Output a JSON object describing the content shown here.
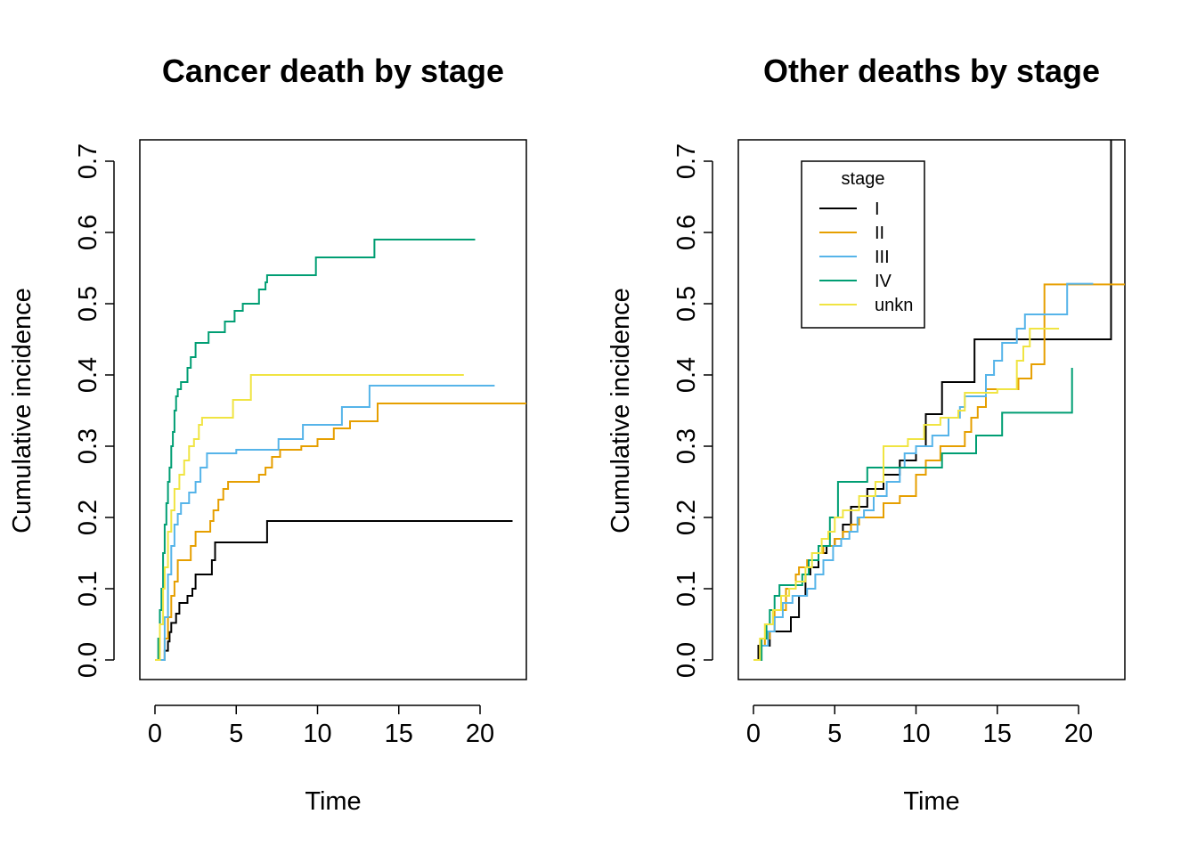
{
  "chart_data": [
    {
      "type": "line",
      "step": true,
      "title": "Cancer death by stage",
      "xlabel": "Time",
      "ylabel": "Cumulative incidence",
      "xlim": [
        0,
        23
      ],
      "ylim": [
        0,
        0.7
      ],
      "xticks": [
        "0",
        "5",
        "10",
        "15",
        "20"
      ],
      "yticks": [
        "0.0",
        "0.1",
        "0.2",
        "0.3",
        "0.4",
        "0.5",
        "0.6",
        "0.7"
      ],
      "legend": null,
      "series": [
        {
          "name": "I",
          "color": "#000000",
          "x": [
            0,
            0.5,
            0.6,
            0.8,
            0.9,
            1.0,
            1.3,
            1.5,
            2.0,
            2.3,
            2.5,
            3.5,
            3.7,
            5.0,
            6.9,
            22.0
          ],
          "y": [
            0,
            0,
            0.013,
            0.026,
            0.039,
            0.052,
            0.065,
            0.08,
            0.09,
            0.1,
            0.12,
            0.14,
            0.165,
            0.165,
            0.195,
            0.195
          ]
        },
        {
          "name": "II",
          "color": "#E69F00",
          "x": [
            0,
            0.4,
            0.6,
            0.8,
            1.0,
            1.2,
            1.4,
            2.2,
            2.5,
            3.4,
            3.6,
            3.9,
            4.2,
            4.5,
            4.9,
            6.4,
            6.8,
            7.2,
            7.7,
            9.0,
            10.0,
            11.0,
            12.0,
            13.7,
            15.0,
            23.0
          ],
          "y": [
            0,
            0,
            0.03,
            0.06,
            0.09,
            0.11,
            0.14,
            0.16,
            0.18,
            0.195,
            0.21,
            0.225,
            0.24,
            0.25,
            0.25,
            0.26,
            0.27,
            0.285,
            0.295,
            0.3,
            0.31,
            0.325,
            0.335,
            0.36,
            0.36,
            0.36
          ]
        },
        {
          "name": "III",
          "color": "#56B4E9",
          "x": [
            0,
            0.4,
            0.6,
            0.8,
            1.0,
            1.2,
            1.4,
            1.6,
            2.1,
            2.5,
            2.8,
            3.2,
            5.0,
            7.6,
            9.1,
            11.5,
            13.2,
            15.0,
            20.9
          ],
          "y": [
            0,
            0,
            0.06,
            0.12,
            0.16,
            0.19,
            0.205,
            0.22,
            0.235,
            0.25,
            0.27,
            0.29,
            0.295,
            0.31,
            0.33,
            0.355,
            0.385,
            0.385,
            0.385
          ]
        },
        {
          "name": "IV",
          "color": "#009E73",
          "x": [
            0,
            0.2,
            0.3,
            0.4,
            0.5,
            0.6,
            0.7,
            0.8,
            0.9,
            1.0,
            1.1,
            1.2,
            1.3,
            1.4,
            1.5,
            1.6,
            2.0,
            2.2,
            2.5,
            2.8,
            3.3,
            4.3,
            4.9,
            5.4,
            6.4,
            6.8,
            6.9,
            9.9,
            13.5,
            19.7
          ],
          "y": [
            0,
            0.03,
            0.07,
            0.1,
            0.15,
            0.19,
            0.22,
            0.25,
            0.27,
            0.3,
            0.32,
            0.35,
            0.37,
            0.38,
            0.38,
            0.39,
            0.41,
            0.425,
            0.445,
            0.445,
            0.46,
            0.475,
            0.49,
            0.5,
            0.52,
            0.53,
            0.54,
            0.565,
            0.59,
            0.59
          ]
        },
        {
          "name": "unkn",
          "color": "#F0E442",
          "x": [
            0,
            0.3,
            0.5,
            0.6,
            0.8,
            1.0,
            1.2,
            1.5,
            1.8,
            2.1,
            2.4,
            2.7,
            2.9,
            4.8,
            5.9,
            19.0
          ],
          "y": [
            0,
            0.05,
            0.1,
            0.13,
            0.18,
            0.21,
            0.24,
            0.26,
            0.28,
            0.3,
            0.31,
            0.33,
            0.34,
            0.365,
            0.4,
            0.4
          ]
        }
      ]
    },
    {
      "type": "line",
      "step": true,
      "title": "Other deaths by stage",
      "xlabel": "Time",
      "ylabel": "Cumulative incidence",
      "xlim": [
        0,
        23
      ],
      "ylim": [
        0,
        0.7
      ],
      "xticks": [
        "0",
        "5",
        "10",
        "15",
        "20"
      ],
      "yticks": [
        "0.0",
        "0.1",
        "0.2",
        "0.3",
        "0.4",
        "0.5",
        "0.6",
        "0.7"
      ],
      "legend": {
        "title": "stage",
        "position": "top-left"
      },
      "series": [
        {
          "name": "I",
          "color": "#000000",
          "x": [
            0,
            0.3,
            1.0,
            2.3,
            2.8,
            3.2,
            3.5,
            4.0,
            4.5,
            5.0,
            5.5,
            6.0,
            7.0,
            8.0,
            9.0,
            10.0,
            10.6,
            11.6,
            13.6,
            15.0,
            22.0,
            22.0
          ],
          "y": [
            0,
            0.02,
            0.04,
            0.06,
            0.09,
            0.12,
            0.13,
            0.15,
            0.16,
            0.17,
            0.19,
            0.215,
            0.24,
            0.26,
            0.28,
            0.3,
            0.345,
            0.39,
            0.45,
            0.45,
            0.45,
            0.74
          ]
        },
        {
          "name": "II",
          "color": "#E69F00",
          "x": [
            0,
            0.4,
            0.7,
            1.0,
            1.3,
            2.0,
            2.6,
            2.8,
            3.3,
            4.0,
            4.3,
            5.0,
            5.5,
            6.0,
            6.5,
            8.0,
            9.0,
            10.0,
            10.6,
            11.5,
            13.0,
            13.4,
            13.8,
            14.3,
            15.6,
            16.3,
            17.1,
            17.9,
            19.0,
            23.0
          ],
          "y": [
            0,
            0.02,
            0.03,
            0.04,
            0.07,
            0.1,
            0.12,
            0.13,
            0.14,
            0.15,
            0.16,
            0.17,
            0.18,
            0.19,
            0.2,
            0.22,
            0.23,
            0.26,
            0.28,
            0.3,
            0.32,
            0.34,
            0.355,
            0.38,
            0.38,
            0.395,
            0.415,
            0.527,
            0.527,
            0.527
          ]
        },
        {
          "name": "III",
          "color": "#56B4E9",
          "x": [
            0,
            0.5,
            0.9,
            1.3,
            1.8,
            2.4,
            3.3,
            3.8,
            4.3,
            4.9,
            5.4,
            5.9,
            6.4,
            6.8,
            7.4,
            8.2,
            9.0,
            9.3,
            10.0,
            11.0,
            12.0,
            12.7,
            13.0,
            14.3,
            14.8,
            15.3,
            16.2,
            16.7,
            17.0,
            19.3,
            20.1,
            20.9
          ],
          "y": [
            0,
            0.02,
            0.04,
            0.06,
            0.08,
            0.09,
            0.1,
            0.12,
            0.14,
            0.16,
            0.17,
            0.18,
            0.2,
            0.21,
            0.23,
            0.25,
            0.27,
            0.29,
            0.3,
            0.315,
            0.34,
            0.355,
            0.37,
            0.4,
            0.42,
            0.445,
            0.465,
            0.485,
            0.485,
            0.528,
            0.528,
            0.528
          ]
        },
        {
          "name": "IV",
          "color": "#009E73",
          "x": [
            0,
            0.5,
            0.8,
            1.0,
            1.3,
            1.6,
            3.0,
            3.4,
            4.0,
            4.7,
            5.2,
            7.0,
            8.3,
            10.0,
            11.6,
            13.7,
            15.3,
            19.6,
            19.6
          ],
          "y": [
            0,
            0.03,
            0.05,
            0.07,
            0.09,
            0.105,
            0.12,
            0.14,
            0.16,
            0.2,
            0.25,
            0.27,
            0.27,
            0.27,
            0.29,
            0.315,
            0.347,
            0.347,
            0.41
          ]
        },
        {
          "name": "unkn",
          "color": "#F0E442",
          "x": [
            0,
            0.4,
            0.7,
            1.2,
            1.7,
            2.2,
            2.6,
            3.2,
            3.6,
            4.2,
            4.6,
            5.0,
            5.5,
            6.5,
            7.5,
            8.0,
            9.5,
            10.5,
            11.5,
            12.6,
            13.0,
            15.0,
            16.2,
            16.6,
            17.0,
            18.8
          ],
          "y": [
            0,
            0.03,
            0.05,
            0.07,
            0.09,
            0.1,
            0.11,
            0.13,
            0.15,
            0.17,
            0.18,
            0.2,
            0.21,
            0.23,
            0.25,
            0.3,
            0.31,
            0.33,
            0.34,
            0.35,
            0.375,
            0.38,
            0.42,
            0.44,
            0.465,
            0.465
          ]
        }
      ]
    }
  ]
}
